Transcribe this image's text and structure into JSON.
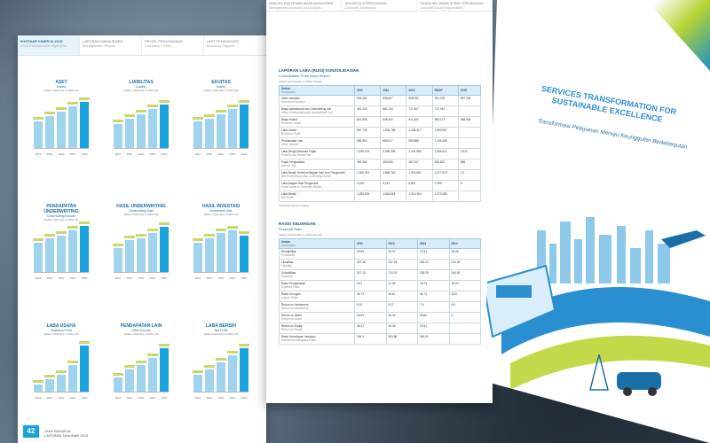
{
  "left_page": {
    "tabs": [
      {
        "title": "IKHTISAR KINERJA 2015",
        "subtitle": "2015 Performance Highlights"
      },
      {
        "title": "LAPORAN MANAJEMEN",
        "subtitle": "Management Report"
      },
      {
        "title": "PROFIL PERUSAHAAN",
        "subtitle": "Company Profile"
      },
      {
        "title": "UNIT PENDUKUNG",
        "subtitle": "Business Support"
      }
    ],
    "charts": [
      {
        "title": "ASET",
        "subtitle": "Assets",
        "unit": "(dalam miliar Rp) in billion Rp"
      },
      {
        "title": "LIABILITAS",
        "subtitle": "Liability",
        "unit": "(dalam miliar Rp) in billion Rp"
      },
      {
        "title": "EKUITAS",
        "subtitle": "Equity",
        "unit": "(dalam miliar Rp) in billion Rp"
      },
      {
        "title": "PENDAPATAN UNDERWRITING",
        "subtitle": "Underwriting Income",
        "unit": "(dalam miliar Rp) in billion Rp"
      },
      {
        "title": "HASIL UNDERWRITING",
        "subtitle": "Underwriting Gain",
        "unit": "(dalam miliar Rp) in billion Rp"
      },
      {
        "title": "HASIL INVESTASI",
        "subtitle": "Investment Gain",
        "unit": "(dalam miliar Rp) in billion Rp"
      },
      {
        "title": "LABA USAHA",
        "subtitle": "Business Profit",
        "unit": "(dalam miliar Rp) in billion Rp"
      },
      {
        "title": "PENDAPATAN LAIN",
        "subtitle": "Other Income",
        "unit": "(dalam miliar Rp) in billion Rp"
      },
      {
        "title": "LABA BERSIH",
        "subtitle": "Net Profit",
        "unit": "(dalam miliar Rp) in billion Rp"
      }
    ],
    "years": [
      "2011",
      "2012",
      "2013",
      "2014",
      "2015"
    ],
    "page_number": "42",
    "footer_line1": "JASA RAHARJA",
    "footer_line2": "LAPORAN TAHUNAN 2015"
  },
  "middle_page": {
    "tabs": [
      {
        "title": "ANALISIS DAN PEMBAHASAN MANAJEMEN",
        "subtitle": "Management Discussion and Analysis"
      },
      {
        "title": "TATA KELOLA PERUSAHAAN",
        "subtitle": "Corporate Governance"
      },
      {
        "title": "TANGGUNG JAWAB SOSIAL PERUSAHAAN",
        "subtitle": "Corporate Social Responsibility"
      }
    ],
    "table1": {
      "title": "LAPORAN LABA (RUGI) KONSOLIDASIAN",
      "subtitle": "Consolidated Profit (loss) Report",
      "unit": "(dalam juta Rupiah) in million Rupiah",
      "headers": [
        "Uraian",
        "2011",
        "2012",
        "2013",
        "RKAP",
        "2015"
      ],
      "header_sub": "Description",
      "rows": [
        {
          "id": "Hasil Investasi",
          "en": "Investment Income",
          "v": [
            "535,453",
            "605,697",
            "598,091",
            "761,379",
            "957,339"
          ]
        },
        {
          "id": "Biaya operasional dan Underwriting lain",
          "en": "Other Underwriting and Operational Cost",
          "v": [
            "461,343",
            "664,134",
            "737,607",
            "717,041",
            ""
          ]
        },
        {
          "id": "Biaya Usaha",
          "en": "Business Costs",
          "v": [
            "814,838",
            "605,442",
            "911,402",
            "983,137",
            "956,339"
          ]
        },
        {
          "id": "Laba Usaha",
          "en": "Business Profit",
          "v": [
            "957,725",
            "1,206,768",
            "1,426,417",
            "1,809,997",
            ""
          ]
        },
        {
          "id": "Pendapatan Lain",
          "en": "Other Income",
          "v": [
            "685,853",
            "689,617",
            "983,858",
            "1,109,465",
            ""
          ]
        },
        {
          "id": "Laba (Rugi) Sebelum Pajak",
          "en": "Profit (Loss) Before Tax",
          "v": [
            "1,625,375",
            "2,056,395",
            "2,401,966",
            "2,906,811",
            "2,512"
          ]
        },
        {
          "id": "Pajak Penghasilan",
          "en": "Income Tax",
          "v": [
            "329,054",
            "399,635",
            "482,317",
            "536,822",
            "686"
          ]
        },
        {
          "id": "Laba Bersih Sebelum Bagian Hak Non Pengendali",
          "en": "Net Profit Before Non Controlling Share",
          "v": [
            "1,300,321",
            "1,656,760",
            "1,919,651",
            "2,377,679",
            "2,2"
          ]
        },
        {
          "id": "Laba Bagian Hak Pengendali",
          "en": "Profit Share to Controller Rights",
          "v": [
            "4,316",
            "5,142",
            "6,857",
            "7,290",
            "8"
          ]
        },
        {
          "id": "Laba Bersih",
          "en": "Net Profit",
          "v": [
            "1,296,005",
            "1,654,618",
            "1,912,394",
            "2,370,289",
            ""
          ]
        }
      ],
      "note": "*Restated format restated"
    },
    "table2": {
      "title": "RASIO KEUANGAN",
      "subtitle": "Financial Ratio",
      "unit": "(dalam juta Rupiah) in million Rupiah",
      "headers": [
        "Uraian",
        "2011",
        "2012",
        "2013",
        "2014"
      ],
      "header_sub": "Description",
      "rows": [
        {
          "id": "Rentabilitas",
          "en": "Profitability",
          "v": [
            "29.09",
            "32.07",
            "27.81",
            "29.45"
          ]
        },
        {
          "id": "Likuiditas",
          "en": "Liquidity",
          "v": [
            "307.36",
            "237.49",
            "306.22",
            "234.29"
          ]
        },
        {
          "id": "Solvabilitas",
          "en": "Solvency",
          "v": [
            "317.13",
            "274.01",
            "305.28",
            "346.63"
          ]
        },
        {
          "id": "Rasio Pengeluaran",
          "en": "Expense Ratio",
          "v": [
            "16.2",
            "17.66",
            "18.73",
            "19.20"
          ]
        },
        {
          "id": "Rasio Kerugian",
          "en": "Losses Ratio",
          "v": [
            "44.73",
            "43.67",
            "34.73",
            "32.8"
          ]
        },
        {
          "id": "Return on Investment",
          "en": "Return on Investment",
          "v": [
            "9.01",
            "8.17",
            "7.5",
            "6.9"
          ]
        },
        {
          "id": "Return on Asset",
          "en": "Return on Asset",
          "v": [
            "29.03",
            "30.34",
            "32.82",
            "3"
          ]
        },
        {
          "id": "Return on Equity",
          "en": "Return on Equity",
          "v": [
            "36.37",
            "34.44",
            "37.61",
            ""
          ]
        },
        {
          "id": "Rasio Kecukupan Investasi",
          "en": "Investment Adequacy Ratio",
          "v": [
            "336.4",
            "363.86",
            "316.41",
            ""
          ]
        }
      ]
    }
  },
  "right_page": {
    "title": "SERVICES TRANSFORMATION FOR SUSTAINABLE EXCELLENCE",
    "subtitle": "Transformasi Pelayanan Menuju Keunggulan Berkelanjutan",
    "colors": {
      "accent_blue": "#2f8fcf",
      "accent_green": "#b5d334"
    }
  }
}
